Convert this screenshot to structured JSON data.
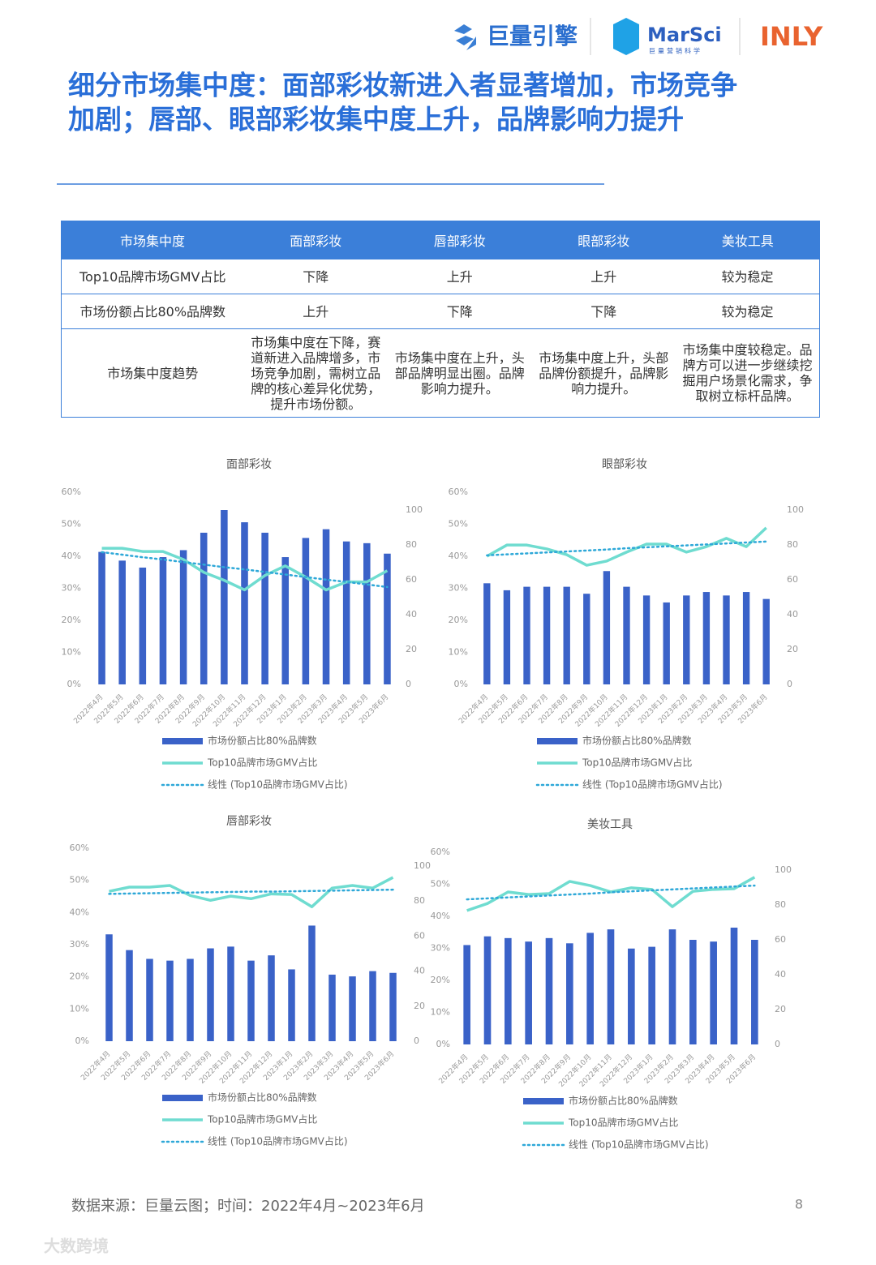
{
  "logos": {
    "juliang": "巨量引擎",
    "marsci": "MarSci",
    "marsci_sub": "巨量营销科学",
    "inly": "INLY"
  },
  "title_lines": [
    "细分市场集中度：面部彩妆新进入者显著增加，市场竞争",
    "加剧；唇部、眼部彩妆集中度上升，品牌影响力提升"
  ],
  "table": {
    "header": [
      "市场集中度",
      "面部彩妆",
      "唇部彩妆",
      "眼部彩妆",
      "美妆工具"
    ],
    "rows": [
      [
        "Top10品牌市场GMV占比",
        "下降",
        "上升",
        "上升",
        "较为稳定"
      ],
      [
        "市场份额占比80%品牌数",
        "上升",
        "下降",
        "下降",
        "较为稳定"
      ],
      [
        "市场集中度趋势",
        "市场集中度在下降，赛道新进入品牌增多，市场竞争加剧，需树立品牌的核心差异化优势，提升市场份额。",
        "市场集中度在上升，头部品牌明显出圈。品牌影响力提升。",
        "市场集中度上升，头部品牌份额提升，品牌影响力提升。",
        "市场集中度较稳定。品牌方可以进一步继续挖掘用户场景化需求，争取树立标杆品牌。"
      ]
    ]
  },
  "chart_data": [
    {
      "type": "bar",
      "title": "面部彩妆",
      "categories": [
        "2022年4月",
        "2022年5月",
        "2022年6月",
        "2022年7月",
        "2022年8月",
        "2022年9月",
        "2022年10月",
        "2022年11月",
        "2022年12月",
        "2023年1月",
        "2023年2月",
        "2023年3月",
        "2023年4月",
        "2023年5月",
        "2023年6月"
      ],
      "ylim": [
        0,
        60
      ],
      "yticks": [
        {
          "value": 0,
          "label": "0%"
        },
        {
          "value": 10,
          "label": "10%"
        },
        {
          "value": 20,
          "label": "20%"
        },
        {
          "value": 30,
          "label": "30%"
        },
        {
          "value": 40,
          "label": "40%"
        },
        {
          "value": 50,
          "label": "50%"
        },
        {
          "value": 60,
          "label": "60%"
        }
      ],
      "y2lim": [
        0,
        100
      ],
      "y2ticks": [
        0,
        20,
        40,
        60,
        80,
        100
      ],
      "series": [
        {
          "name": "市场份额占比80%品牌数",
          "type": "bar",
          "axis": "y2",
          "color": "#3a62c8",
          "values": [
            76,
            71,
            67,
            73,
            77,
            87,
            100,
            93,
            87,
            73,
            84,
            89,
            82,
            81,
            75
          ]
        },
        {
          "name": "Top10品牌市场GMV占比",
          "type": "line",
          "color": "#6fdcd0",
          "values": [
            42.5,
            42.5,
            41.5,
            41.5,
            39,
            35,
            32.5,
            29.5,
            34,
            37,
            33.5,
            29.5,
            32,
            32,
            35.5
          ]
        },
        {
          "name": "线性 (Top10品牌市场GMV占比)",
          "type": "line",
          "dashed": true,
          "color": "#2ea8d8",
          "values": [
            41.3,
            40.5,
            39.7,
            39,
            38.2,
            37.4,
            36.6,
            35.9,
            35.1,
            34.3,
            33.5,
            32.7,
            32,
            31.2,
            30.4
          ]
        }
      ]
    },
    {
      "type": "bar",
      "title": "眼部彩妆",
      "categories": [
        "2022年4月",
        "2022年5月",
        "2022年6月",
        "2022年7月",
        "2022年8月",
        "2022年9月",
        "2022年10月",
        "2022年11月",
        "2022年12月",
        "2023年1月",
        "2023年2月",
        "2023年3月",
        "2023年4月",
        "2023年5月",
        "2023年6月"
      ],
      "ylim": [
        0,
        60
      ],
      "yticks": [
        {
          "value": 0,
          "label": "0%"
        },
        {
          "value": 10,
          "label": "10%"
        },
        {
          "value": 20,
          "label": "20%"
        },
        {
          "value": 30,
          "label": "30%"
        },
        {
          "value": 40,
          "label": "40%"
        },
        {
          "value": 50,
          "label": "50%"
        },
        {
          "value": 60,
          "label": "60%"
        }
      ],
      "y2lim": [
        0,
        100
      ],
      "y2ticks": [
        0,
        20,
        40,
        60,
        80,
        100
      ],
      "series": [
        {
          "name": "市场份额占比80%品牌数",
          "type": "bar",
          "axis": "y2",
          "color": "#3a62c8",
          "values": [
            58,
            54,
            56,
            56,
            56,
            52,
            65,
            56,
            51,
            47,
            51,
            53,
            51,
            53,
            49
          ]
        },
        {
          "name": "Top10品牌市场GMV占比",
          "type": "line",
          "color": "#6fdcd0",
          "values": [
            40,
            43.5,
            43.5,
            42.3,
            40.5,
            37.2,
            38.5,
            41.3,
            43.8,
            43.8,
            41.3,
            43,
            45.6,
            43,
            48.9
          ]
        },
        {
          "name": "线性 (Top10品牌市场GMV占比)",
          "type": "line",
          "dashed": true,
          "color": "#2ea8d8",
          "values": [
            40.3,
            40.6,
            40.9,
            41.2,
            41.5,
            41.8,
            42.1,
            42.5,
            42.8,
            43.1,
            43.4,
            43.7,
            44,
            44.3,
            44.6
          ]
        }
      ]
    },
    {
      "type": "bar",
      "title": "唇部彩妆",
      "categories": [
        "2022年4月",
        "2022年5月",
        "2022年6月",
        "2022年7月",
        "2022年8月",
        "2022年9月",
        "2022年10月",
        "2022年11月",
        "2022年12月",
        "2023年1月",
        "2023年2月",
        "2023年3月",
        "2023年4月",
        "2023年5月",
        "2023年6月"
      ],
      "ylim": [
        0,
        60
      ],
      "yticks": [
        {
          "value": 0,
          "label": "0%"
        },
        {
          "value": 10,
          "label": "10%"
        },
        {
          "value": 20,
          "label": "20%"
        },
        {
          "value": 30,
          "label": "30%"
        },
        {
          "value": 40,
          "label": "40%"
        },
        {
          "value": 50,
          "label": "50%"
        },
        {
          "value": 60,
          "label": "60%"
        }
      ],
      "y2lim": [
        0,
        100
      ],
      "y2ticks": [
        0,
        20,
        40,
        60,
        80,
        100
      ],
      "series": [
        {
          "name": "市场份额占比80%品牌数",
          "type": "bar",
          "axis": "y2",
          "color": "#3a62c8",
          "values": [
            61,
            52,
            47,
            46,
            47,
            53,
            54,
            46,
            49,
            41,
            66,
            38,
            37,
            40,
            39
          ]
        },
        {
          "name": "Top10品牌市场GMV占比",
          "type": "line",
          "color": "#6fdcd0",
          "values": [
            46.6,
            47.9,
            47.9,
            48.4,
            45.3,
            43.8,
            45.1,
            44.3,
            45.8,
            45.6,
            41.8,
            47.6,
            48.4,
            47.6,
            50.9
          ]
        },
        {
          "name": "线性 (Top10品牌市场GMV占比)",
          "type": "line",
          "dashed": true,
          "color": "#2ea8d8",
          "values": [
            45.8,
            45.9,
            46,
            46.1,
            46.2,
            46.3,
            46.4,
            46.5,
            46.5,
            46.6,
            46.7,
            46.8,
            46.9,
            47,
            47.1
          ]
        }
      ]
    },
    {
      "type": "bar",
      "title": "美妆工具",
      "categories": [
        "2022年4月",
        "2022年5月",
        "2022年6月",
        "2022年7月",
        "2022年8月",
        "2022年9月",
        "2022年10月",
        "2022年11月",
        "2022年12月",
        "2023年1月",
        "2023年2月",
        "2023年3月",
        "2023年4月",
        "2023年5月",
        "2023年6月"
      ],
      "ylim": [
        0,
        60
      ],
      "yticks": [
        {
          "value": 0,
          "label": "0%"
        },
        {
          "value": 10,
          "label": "10%"
        },
        {
          "value": 20,
          "label": "20%"
        },
        {
          "value": 30,
          "label": "30%"
        },
        {
          "value": 40,
          "label": "40%"
        },
        {
          "value": 50,
          "label": "50%"
        },
        {
          "value": 60,
          "label": "60%"
        }
      ],
      "y2lim": [
        0,
        100
      ],
      "y2ticks": [
        0,
        20,
        40,
        60,
        80,
        100
      ],
      "series": [
        {
          "name": "市场份额占比80%品牌数",
          "type": "bar",
          "axis": "y2",
          "color": "#3a62c8",
          "values": [
            57,
            62,
            61,
            59,
            61,
            58,
            64,
            66,
            55,
            56,
            66,
            60,
            59,
            67,
            60
          ]
        },
        {
          "name": "Top10品牌市场GMV占比",
          "type": "line",
          "color": "#6fdcd0",
          "values": [
            41.8,
            44,
            47.6,
            46.8,
            47.1,
            50.9,
            49.6,
            47.6,
            48.9,
            48.4,
            43,
            47.8,
            48.4,
            48.6,
            52.2
          ]
        },
        {
          "name": "线性 (Top10品牌市场GMV占比)",
          "type": "line",
          "dashed": true,
          "color": "#2ea8d8",
          "values": [
            45.3,
            45.6,
            45.9,
            46.2,
            46.5,
            46.8,
            47.1,
            47.5,
            47.8,
            48.1,
            48.4,
            48.7,
            49,
            49.3,
            49.6
          ]
        }
      ]
    }
  ],
  "footer": {
    "source": "数据来源：巨量云图；时间：2022年4月~2023年6月",
    "page": "8",
    "watermark": "大数跨境"
  }
}
